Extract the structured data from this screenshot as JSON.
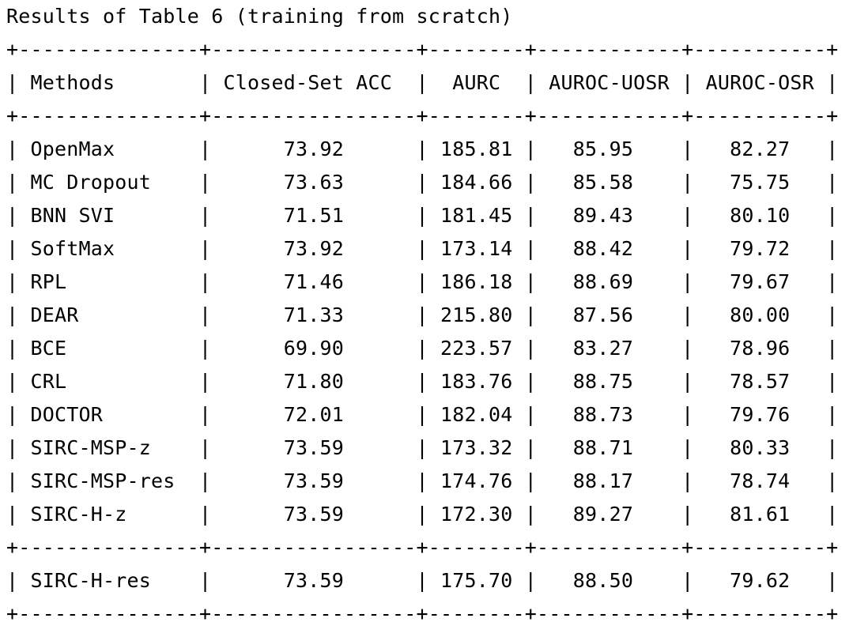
{
  "title": "Results of Table 6 (training from scratch)",
  "table": {
    "border": "+---------------+-----------------+--------+------------+-----------+",
    "header": "| Methods       | Closed-Set ACC  |  AURC  | AUROC-UOSR | AUROC-OSR |",
    "rows": [
      "| OpenMax       |      73.92      | 185.81 |   85.95    |   82.27   |",
      "| MC Dropout    |      73.63      | 184.66 |   85.58    |   75.75   |",
      "| BNN SVI       |      71.51      | 181.45 |   89.43    |   80.10   |",
      "| SoftMax       |      73.92      | 173.14 |   88.42    |   79.72   |",
      "| RPL           |      71.46      | 186.18 |   88.69    |   79.67   |",
      "| DEAR          |      71.33      | 215.80 |   87.56    |   80.00   |",
      "| BCE           |      69.90      | 223.57 |   83.27    |   78.96   |",
      "| CRL           |      71.80      | 183.76 |   88.75    |   78.57   |",
      "| DOCTOR        |      72.01      | 182.04 |   88.73    |   79.76   |",
      "| SIRC-MSP-z    |      73.59      | 173.32 |   88.71    |   80.33   |",
      "| SIRC-MSP-res  |      73.59      | 174.76 |   88.17    |   78.74   |",
      "| SIRC-H-z      |      73.59      | 172.30 |   89.27    |   81.61   |"
    ],
    "footer_rows": [
      "| SIRC-H-res    |      73.59      | 175.70 |   88.50    |   79.62   |"
    ]
  }
}
